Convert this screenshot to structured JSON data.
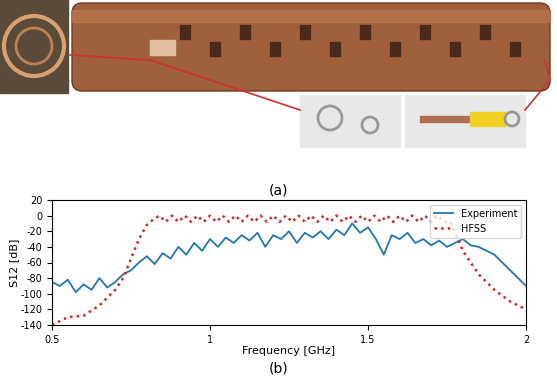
{
  "panel_labels": [
    "(a)",
    "(b)"
  ],
  "chart_data": {
    "type": "line",
    "x_label": "Frequency [GHz]",
    "y_label": "S12 [dB]",
    "xlim": [
      0.5,
      2
    ],
    "xticks": [
      0.5,
      1,
      1.5,
      2
    ],
    "ylim": [
      -140,
      20
    ],
    "yticks": [
      -140,
      -120,
      -100,
      -80,
      -60,
      -40,
      -20,
      0,
      20
    ],
    "legend": "upper right",
    "grid": false,
    "series": [
      {
        "name": "Experiment",
        "color": "#1f77b4",
        "line_style": "solid",
        "x": [
          0.5,
          0.525,
          0.55,
          0.575,
          0.6,
          0.625,
          0.65,
          0.675,
          0.7,
          0.725,
          0.75,
          0.775,
          0.8,
          0.825,
          0.85,
          0.875,
          0.9,
          0.925,
          0.95,
          0.975,
          1.0,
          1.025,
          1.05,
          1.075,
          1.1,
          1.125,
          1.15,
          1.175,
          1.2,
          1.225,
          1.25,
          1.275,
          1.3,
          1.325,
          1.35,
          1.375,
          1.4,
          1.425,
          1.45,
          1.475,
          1.5,
          1.525,
          1.55,
          1.575,
          1.6,
          1.625,
          1.65,
          1.675,
          1.7,
          1.725,
          1.75,
          1.775,
          1.8,
          1.825,
          1.85,
          1.875,
          1.9,
          1.925,
          1.95,
          1.975,
          2.0
        ],
        "values": [
          -85,
          -90,
          -82,
          -98,
          -88,
          -95,
          -80,
          -92,
          -85,
          -75,
          -70,
          -60,
          -52,
          -62,
          -48,
          -55,
          -40,
          -50,
          -35,
          -45,
          -30,
          -40,
          -28,
          -35,
          -25,
          -32,
          -22,
          -40,
          -25,
          -30,
          -20,
          -35,
          -22,
          -28,
          -20,
          -30,
          -18,
          -25,
          -10,
          -22,
          -15,
          -30,
          -50,
          -25,
          -30,
          -22,
          -35,
          -30,
          -38,
          -32,
          -40,
          -35,
          -30,
          -38,
          -40,
          -45,
          -50,
          -60,
          -70,
          -80,
          -90
        ]
      },
      {
        "name": "HFSS",
        "color": "#d62728",
        "line_style": "dotted",
        "x": [
          0.5,
          0.55,
          0.6,
          0.65,
          0.7,
          0.725,
          0.75,
          0.775,
          0.8,
          0.82,
          0.84,
          0.86,
          0.88,
          0.9,
          0.92,
          0.94,
          0.96,
          0.98,
          1.0,
          1.02,
          1.04,
          1.06,
          1.08,
          1.1,
          1.12,
          1.14,
          1.16,
          1.18,
          1.2,
          1.22,
          1.24,
          1.26,
          1.28,
          1.3,
          1.32,
          1.34,
          1.36,
          1.38,
          1.4,
          1.42,
          1.44,
          1.46,
          1.48,
          1.5,
          1.52,
          1.54,
          1.56,
          1.58,
          1.6,
          1.62,
          1.64,
          1.66,
          1.68,
          1.7,
          1.72,
          1.74,
          1.76,
          1.78,
          1.8,
          1.85,
          1.9,
          1.95,
          2.0
        ],
        "values": [
          -140,
          -130,
          -128,
          -115,
          -95,
          -80,
          -55,
          -30,
          -12,
          -5,
          0,
          -8,
          0,
          -8,
          0,
          -8,
          0,
          -8,
          0,
          -8,
          0,
          -8,
          0,
          -8,
          0,
          -8,
          0,
          -8,
          0,
          -8,
          0,
          -8,
          0,
          -8,
          0,
          -8,
          0,
          -8,
          0,
          -8,
          0,
          -8,
          0,
          -8,
          0,
          -8,
          0,
          -8,
          0,
          -8,
          0,
          -8,
          0,
          -8,
          0,
          -8,
          -8,
          -25,
          -45,
          -75,
          -95,
          -110,
          -120
        ]
      }
    ]
  }
}
